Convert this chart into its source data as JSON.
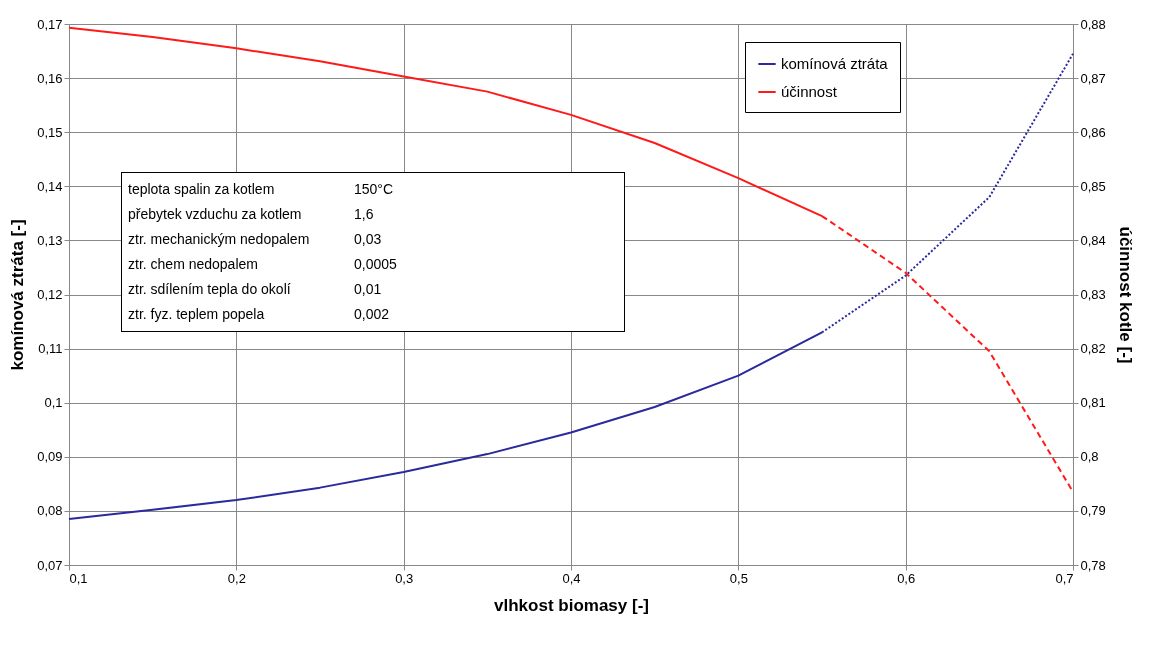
{
  "chart_data": {
    "type": "line",
    "xlabel": "vlhkost biomasy [-]",
    "ylabel": "komínová ztráta [-]",
    "y2label": "účinnost kotle [-]",
    "x": [
      0.1,
      0.15,
      0.2,
      0.25,
      0.3,
      0.35,
      0.4,
      0.45,
      0.5,
      0.55
    ],
    "series": [
      {
        "name": "komínová ztráta",
        "color": "#2a2a9c",
        "line_style": "solid",
        "values": [
          0.0785,
          0.0802,
          0.082,
          0.0843,
          0.0872,
          0.0905,
          0.0945,
          0.0992,
          0.105,
          0.113
        ]
      },
      {
        "name": "účinnost",
        "color": "#ff1a1a",
        "line_style": "solid",
        "axis": "y2",
        "values": [
          0.8793,
          0.8776,
          0.8755,
          0.8731,
          0.8703,
          0.8675,
          0.8632,
          0.858,
          0.8515,
          0.8445
        ]
      },
      {
        "color": "#2a2a9c",
        "line_style": "dotted",
        "x": [
          0.55,
          0.6,
          0.65,
          0.7
        ],
        "values": [
          0.113,
          0.1235,
          0.138,
          0.1645
        ]
      },
      {
        "color": "#ff1a1a",
        "line_style": "dashed",
        "axis": "y2",
        "x": [
          0.55,
          0.6,
          0.65,
          0.7
        ],
        "values": [
          0.8445,
          0.834,
          0.8195,
          0.7935
        ]
      }
    ],
    "xlim": [
      0.1,
      0.7
    ],
    "xticks": [
      {
        "value": 0.1,
        "label": "0,1"
      },
      {
        "value": 0.2,
        "label": "0,2"
      },
      {
        "value": 0.3,
        "label": "0,3"
      },
      {
        "value": 0.4,
        "label": "0,4"
      },
      {
        "value": 0.5,
        "label": "0,5"
      },
      {
        "value": 0.6,
        "label": "0,6"
      },
      {
        "value": 0.7,
        "label": "0,7"
      }
    ],
    "ylim": [
      0.07,
      0.17
    ],
    "yticks": [
      {
        "value": 0.07,
        "label": "0,07"
      },
      {
        "value": 0.08,
        "label": "0,08"
      },
      {
        "value": 0.09,
        "label": "0,09"
      },
      {
        "value": 0.1,
        "label": "0,1"
      },
      {
        "value": 0.11,
        "label": "0,11"
      },
      {
        "value": 0.12,
        "label": "0,12"
      },
      {
        "value": 0.13,
        "label": "0,13"
      },
      {
        "value": 0.14,
        "label": "0,14"
      },
      {
        "value": 0.15,
        "label": "0,15"
      },
      {
        "value": 0.16,
        "label": "0,16"
      },
      {
        "value": 0.17,
        "label": "0,17"
      }
    ],
    "y2lim": [
      0.78,
      0.88
    ],
    "y2ticks": [
      {
        "value": 0.78,
        "label": "0,78"
      },
      {
        "value": 0.79,
        "label": "0,79"
      },
      {
        "value": 0.8,
        "label": "0,8"
      },
      {
        "value": 0.81,
        "label": "0,81"
      },
      {
        "value": 0.82,
        "label": "0,82"
      },
      {
        "value": 0.83,
        "label": "0,83"
      },
      {
        "value": 0.84,
        "label": "0,84"
      },
      {
        "value": 0.85,
        "label": "0,85"
      },
      {
        "value": 0.86,
        "label": "0,86"
      },
      {
        "value": 0.87,
        "label": "0,87"
      },
      {
        "value": 0.88,
        "label": "0,88"
      }
    ],
    "grid": true,
    "legend": "top right",
    "marker": "none",
    "annotations": [
      "teplota spalin za kotlem 150°C",
      "přebytek vzduchu za kotlem 1,6",
      "ztr. mechanickým nedopalem 0,03",
      "ztr. chem nedopalem 0,0005",
      "ztr. sdílením tepla do okolí 0,01",
      "ztr. fyz. teplem popela 0,002"
    ]
  }
}
